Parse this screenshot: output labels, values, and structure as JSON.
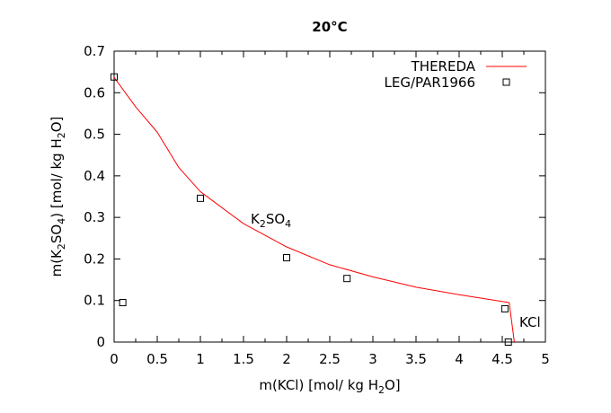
{
  "chart_data": {
    "type": "scatter",
    "title": "20°C",
    "xlabel": {
      "pre": "m(KCl) [mol/ kg H",
      "sub": "2",
      "post": "O]"
    },
    "ylabel": {
      "p1": "m(K",
      "s1": "2",
      "p2": "SO",
      "s2": "4",
      "p3": ") [mol/ kg H",
      "s3": "2",
      "p4": "O]"
    },
    "xlim": [
      0,
      5
    ],
    "ylim": [
      0,
      0.7
    ],
    "xticks": [
      "0",
      "0.5",
      "1",
      "1.5",
      "2",
      "2.5",
      "3",
      "3.5",
      "4",
      "4.5",
      "5"
    ],
    "yticks": [
      "0",
      "0.1",
      "0.2",
      "0.3",
      "0.4",
      "0.5",
      "0.6",
      "0.7"
    ],
    "grid": false,
    "legend_position": "top-right",
    "series": [
      {
        "name": "THEREDA",
        "style": "line",
        "color": "#ff0000",
        "x": [
          0,
          0.25,
          0.5,
          0.75,
          1,
          1.5,
          2,
          2.5,
          3,
          3.5,
          4,
          4.58,
          4.64
        ],
        "y": [
          0.637,
          0.566,
          0.505,
          0.42,
          0.362,
          0.285,
          0.229,
          0.186,
          0.157,
          0.132,
          0.114,
          0.095,
          0
        ]
      },
      {
        "name": "LEG/PAR1966",
        "style": "open-square",
        "color": "#000000",
        "x": [
          0,
          0.1,
          1,
          2,
          2.7,
          4.53,
          4.57
        ],
        "y": [
          0.638,
          0.095,
          0.346,
          0.203,
          0.153,
          0.08,
          0
        ]
      }
    ],
    "annotations": [
      {
        "pre": "K",
        "s1": "2",
        "mid": "SO",
        "s2": "4",
        "x": 1.6,
        "y": 0.29
      },
      {
        "text": "KCl",
        "x": 4.74,
        "y": 0.045
      }
    ]
  }
}
